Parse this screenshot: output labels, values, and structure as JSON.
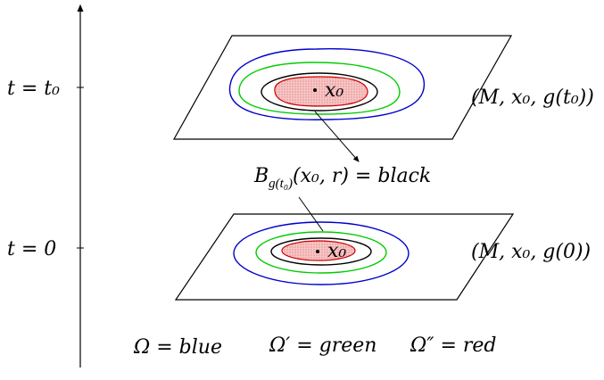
{
  "time_axis": {
    "label_top": "t = t₀",
    "label_bottom": "t = 0"
  },
  "top_plane": {
    "point_label": "x₀",
    "manifold_label": "(M, x₀, g(t₀))"
  },
  "bottom_plane": {
    "point_label": "x₀",
    "manifold_label": "(M, x₀, g(0))"
  },
  "ball_label": {
    "main": "B",
    "subscript": "g(t₀)",
    "args": "(x₀, r) = black"
  },
  "legend": {
    "omega": "Ω = blue",
    "omega_prime": "Ω′ = green",
    "omega_double_prime": "Ω″ = red"
  },
  "colors": {
    "omega": "#0000cc",
    "omega_prime": "#00cc00",
    "omega_double_prime": "#e02020",
    "ball": "#000000",
    "fill": "#f4b6b6"
  }
}
